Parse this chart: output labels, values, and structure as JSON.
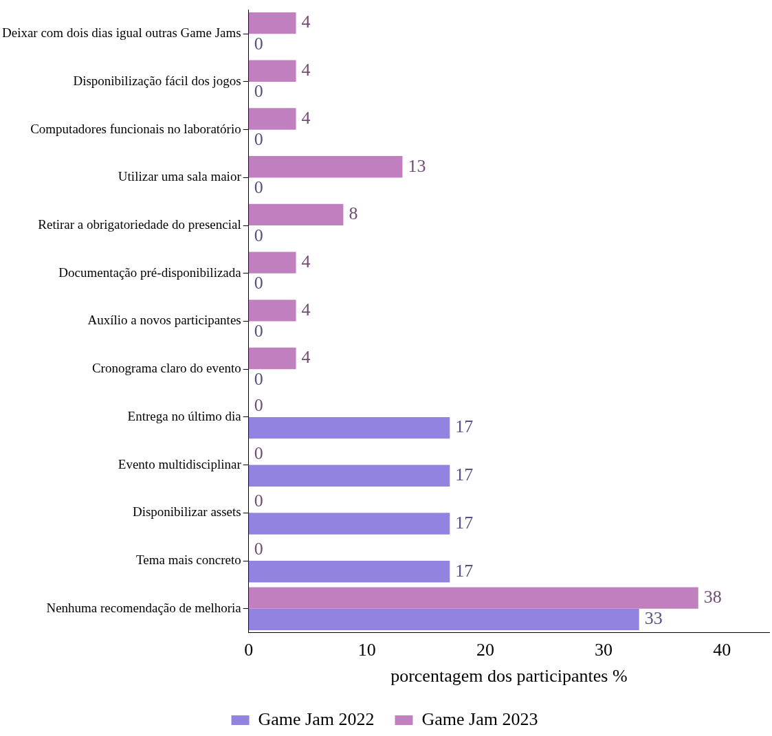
{
  "chart_data": {
    "type": "bar",
    "orientation": "horizontal",
    "xlabel": "porcentagem dos participantes %",
    "categories": [
      "Deixar com dois dias igual outras Game Jams",
      "Disponibilização fácil dos jogos",
      "Computadores funcionais no laboratório",
      "Utilizar uma sala maior",
      "Retirar a obrigatoriedade do presencial",
      "Documentação pré-disponibilizada",
      "Auxílio a novos participantes",
      "Cronograma claro do evento",
      "Entrega no último dia",
      "Evento multidisciplinar",
      "Disponibilizar assets",
      "Tema mais concreto",
      "Nenhuma recomendação de melhoria"
    ],
    "series": [
      {
        "name": "Game Jam 2022",
        "color": "#9383e0",
        "values": [
          0,
          0,
          0,
          0,
          0,
          0,
          0,
          0,
          17,
          17,
          17,
          17,
          33
        ]
      },
      {
        "name": "Game Jam 2023",
        "color": "#c080c0",
        "values": [
          4,
          4,
          4,
          13,
          8,
          4,
          4,
          4,
          0,
          0,
          0,
          0,
          38
        ]
      }
    ],
    "xlim": [
      0,
      44
    ],
    "xticks": [
      0,
      10,
      20,
      30,
      40
    ],
    "data_labels": true,
    "grid": false,
    "legend": "bottom"
  }
}
